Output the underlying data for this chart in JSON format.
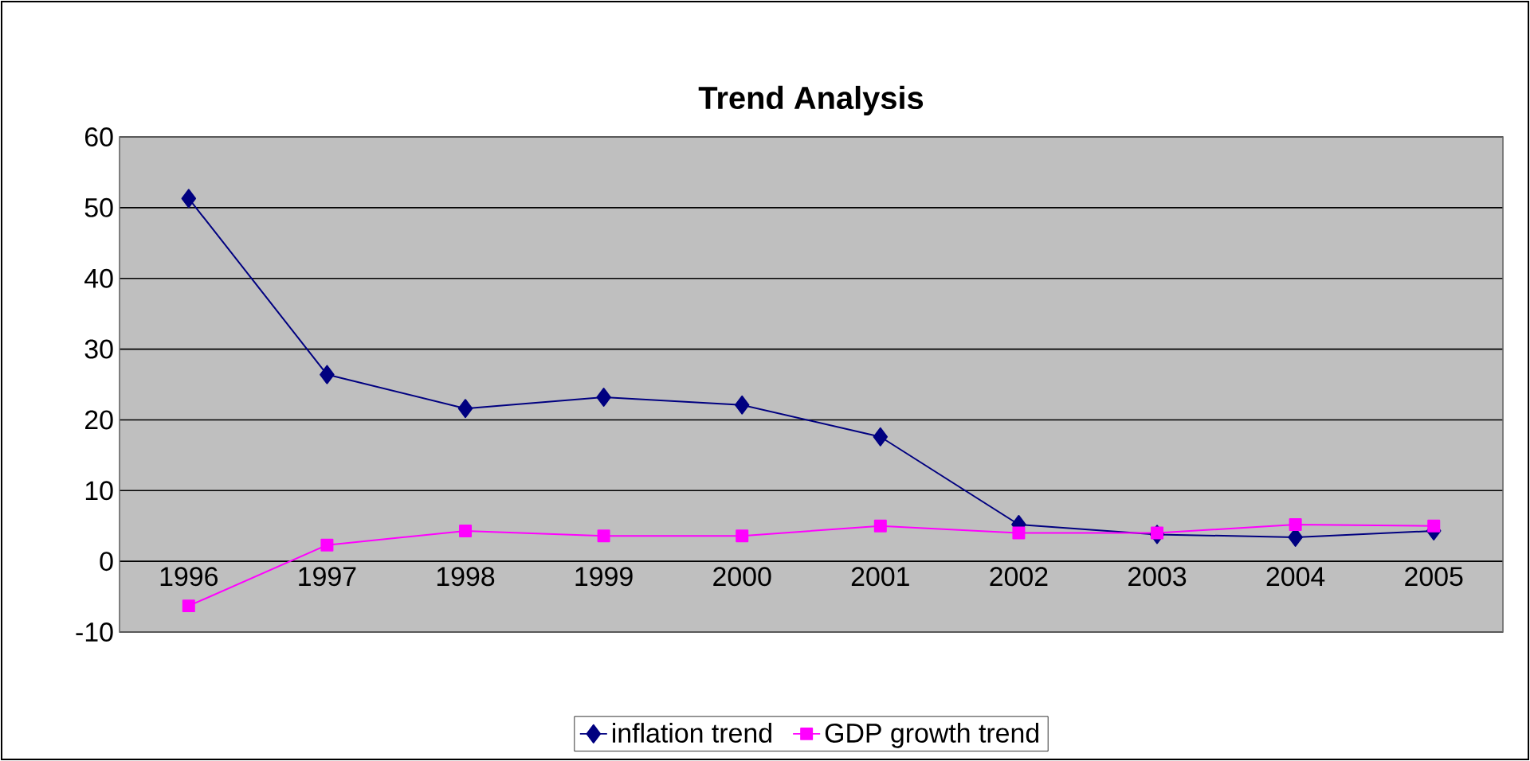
{
  "chart_data": {
    "type": "line",
    "title": "Trend Analysis",
    "categories": [
      "1996",
      "1997",
      "1998",
      "1999",
      "2000",
      "2001",
      "2002",
      "2003",
      "2004",
      "2005"
    ],
    "series": [
      {
        "name": "inflation trend",
        "color": "#000080",
        "marker": "diamond",
        "values": [
          51.3,
          26.4,
          21.6,
          23.2,
          22.1,
          17.6,
          5.2,
          3.8,
          3.4,
          4.3
        ]
      },
      {
        "name": "GDP growth trend",
        "color": "#ff00ff",
        "marker": "square",
        "values": [
          -6.3,
          2.3,
          4.3,
          3.6,
          3.6,
          5.0,
          4.0,
          4.0,
          5.2,
          5.0
        ]
      }
    ],
    "ylim": [
      -10,
      60
    ],
    "yticks": [
      -10,
      0,
      10,
      20,
      30,
      40,
      50,
      60
    ],
    "grid": "y",
    "legend": "bottom",
    "line_style": "solid"
  }
}
